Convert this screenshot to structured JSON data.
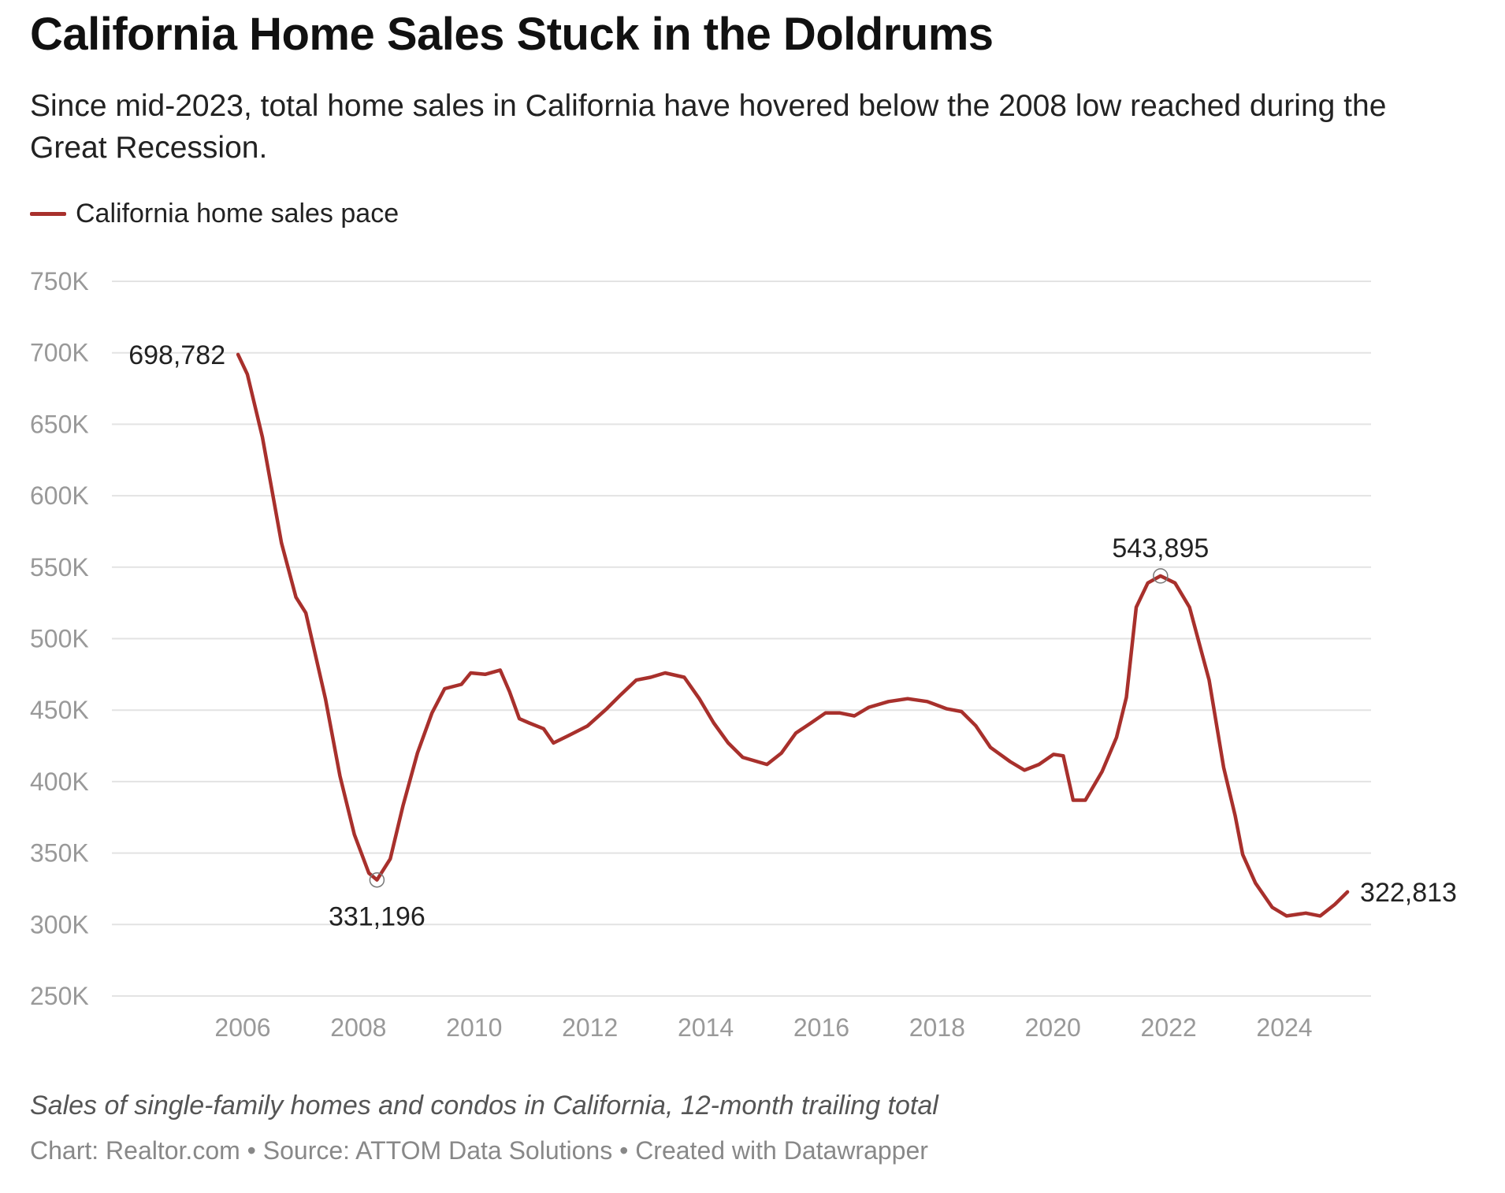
{
  "chart_data": {
    "type": "line",
    "title": "California Home Sales Stuck in the Doldrums",
    "subtitle": "Since mid-2023, total home sales in California have hovered below the 2008 low reached during the Great Recession.",
    "notes": "Sales of single-family homes and condos in California, 12-month trailing total",
    "source": "Chart: Realtor.com • Source: ATTOM Data Solutions • Created with Datawrapper",
    "xlabel": "",
    "ylabel": "",
    "ylim": [
      250000,
      750000
    ],
    "xlim": [
      2005.5,
      2025.4
    ],
    "grid": true,
    "legend_position": "top-left",
    "y_ticks": [
      {
        "value": 750000,
        "label": "750K"
      },
      {
        "value": 700000,
        "label": "700K"
      },
      {
        "value": 650000,
        "label": "650K"
      },
      {
        "value": 600000,
        "label": "600K"
      },
      {
        "value": 550000,
        "label": "550K"
      },
      {
        "value": 500000,
        "label": "500K"
      },
      {
        "value": 450000,
        "label": "450K"
      },
      {
        "value": 400000,
        "label": "400K"
      },
      {
        "value": 350000,
        "label": "350K"
      },
      {
        "value": 300000,
        "label": "300K"
      },
      {
        "value": 250000,
        "label": "250K"
      }
    ],
    "x_ticks": [
      {
        "value": 2006,
        "label": "2006"
      },
      {
        "value": 2008,
        "label": "2008"
      },
      {
        "value": 2010,
        "label": "2010"
      },
      {
        "value": 2012,
        "label": "2012"
      },
      {
        "value": 2014,
        "label": "2014"
      },
      {
        "value": 2016,
        "label": "2016"
      },
      {
        "value": 2018,
        "label": "2018"
      },
      {
        "value": 2020,
        "label": "2020"
      },
      {
        "value": 2022,
        "label": "2022"
      },
      {
        "value": 2024,
        "label": "2024"
      }
    ],
    "series": [
      {
        "name": "California home sales pace",
        "color": "#a8302c",
        "x": [
          2005.92,
          2006.08,
          2006.34,
          2006.67,
          2006.92,
          2007.09,
          2007.43,
          2007.68,
          2007.93,
          2008.18,
          2008.32,
          2008.55,
          2008.77,
          2009.02,
          2009.27,
          2009.49,
          2009.78,
          2009.94,
          2010.19,
          2010.45,
          2010.61,
          2010.78,
          2010.95,
          2011.2,
          2011.37,
          2011.62,
          2011.96,
          2012.29,
          2012.54,
          2012.8,
          2013.05,
          2013.3,
          2013.63,
          2013.89,
          2014.14,
          2014.39,
          2014.64,
          2015.06,
          2015.31,
          2015.56,
          2015.82,
          2016.07,
          2016.32,
          2016.57,
          2016.82,
          2017.16,
          2017.49,
          2017.83,
          2018.16,
          2018.42,
          2018.67,
          2018.92,
          2019.26,
          2019.51,
          2019.76,
          2020.01,
          2020.18,
          2020.35,
          2020.56,
          2020.85,
          2021.1,
          2021.27,
          2021.44,
          2021.64,
          2021.86,
          2022.11,
          2022.36,
          2022.7,
          2022.95,
          2023.15,
          2023.28,
          2023.5,
          2023.79,
          2024.04,
          2024.37,
          2024.62,
          2024.87,
          2025.09
        ],
        "y": [
          698782,
          685000,
          641000,
          567000,
          529000,
          518000,
          458000,
          404000,
          363000,
          336000,
          331196,
          346000,
          383000,
          420000,
          448000,
          465000,
          468000,
          476000,
          475000,
          478000,
          463000,
          444000,
          441000,
          437000,
          427000,
          432000,
          439000,
          451000,
          461000,
          471000,
          473000,
          476000,
          473000,
          458000,
          441000,
          427000,
          417000,
          412000,
          420000,
          434000,
          441000,
          448000,
          448000,
          446000,
          452000,
          456000,
          458000,
          456000,
          451000,
          449000,
          439000,
          424000,
          414000,
          408000,
          412000,
          419000,
          418000,
          387000,
          387000,
          407000,
          431000,
          459000,
          522000,
          539000,
          543895,
          539000,
          522000,
          471000,
          410000,
          376000,
          349000,
          329000,
          312000,
          306000,
          308000,
          306000,
          314000,
          322813
        ]
      }
    ],
    "annotations": [
      {
        "label": "698,782",
        "x": 2005.92,
        "y": 698782,
        "position": "left"
      },
      {
        "label": "331,196",
        "x": 2008.32,
        "y": 331196,
        "position": "below",
        "marker": true
      },
      {
        "label": "543,895",
        "x": 2021.86,
        "y": 543895,
        "position": "above",
        "marker": true
      },
      {
        "label": "322,813",
        "x": 2025.09,
        "y": 322813,
        "position": "right"
      }
    ]
  }
}
